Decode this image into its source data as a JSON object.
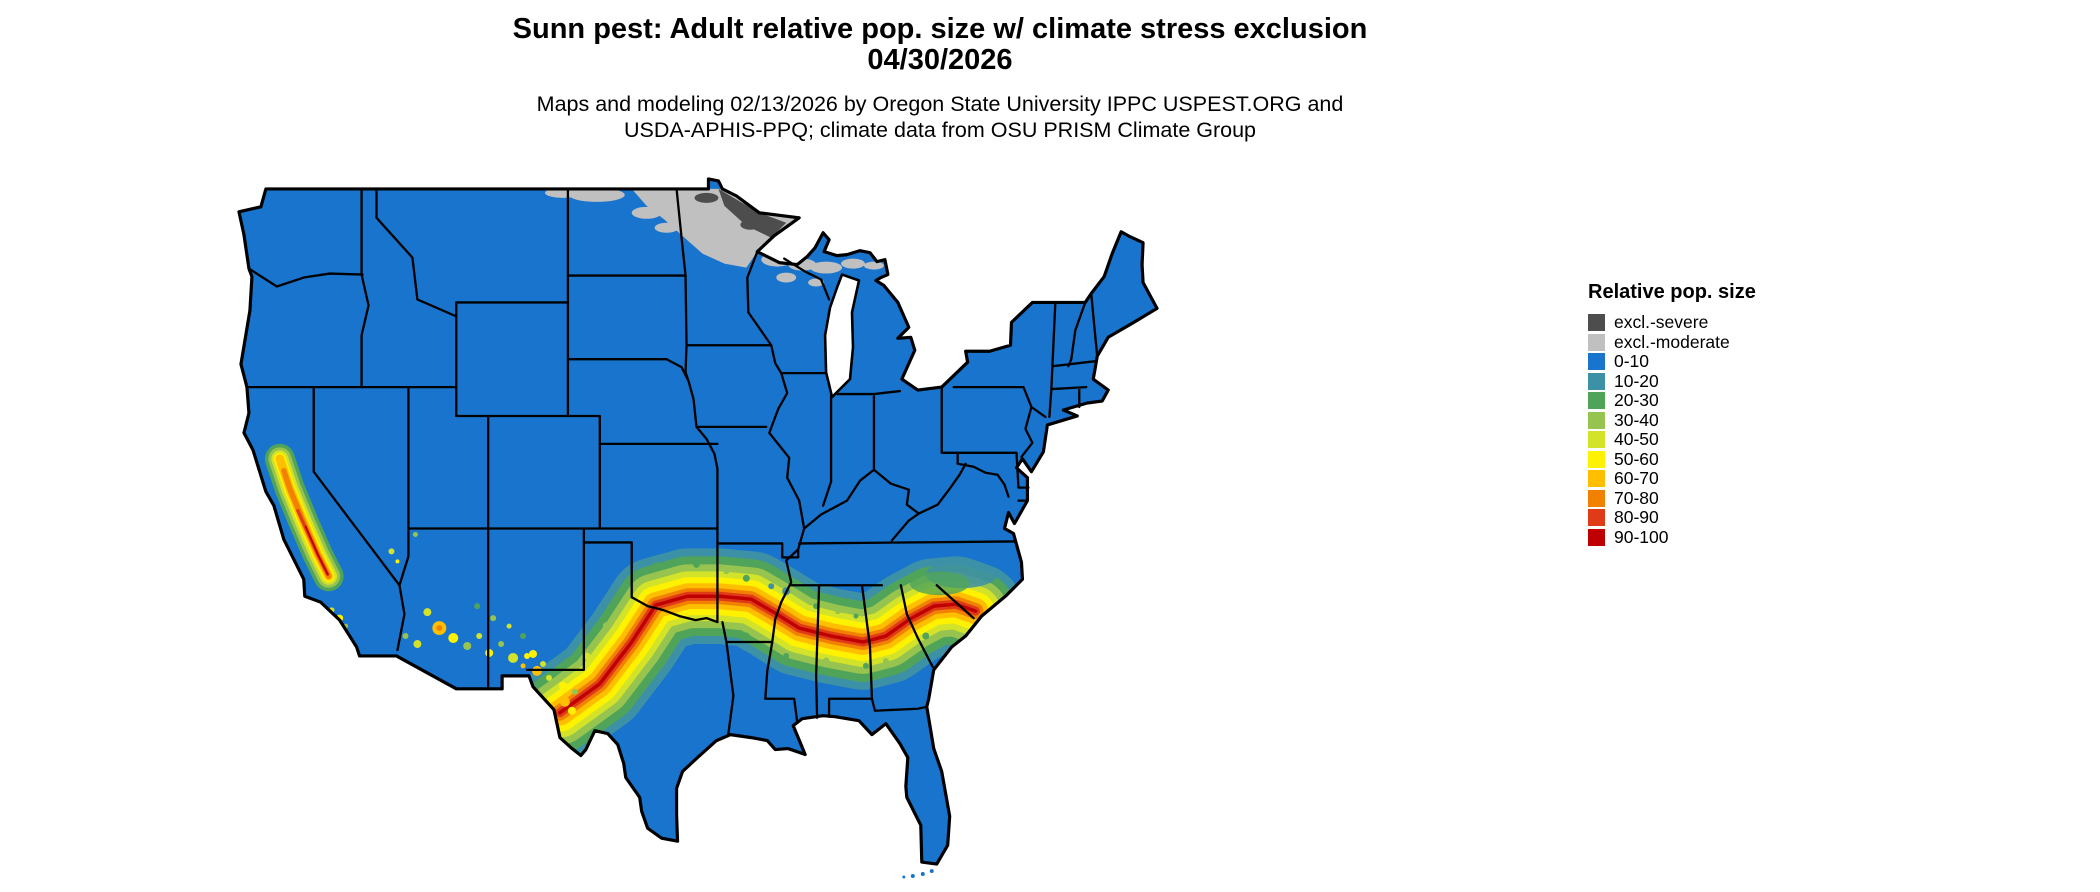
{
  "title": {
    "line1": "Sunn pest: Adult relative pop. size w/ climate stress exclusion",
    "line2": "04/30/2026"
  },
  "subtitle": {
    "line1": "Maps and modeling 02/13/2026 by Oregon State University IPPC USPEST.ORG and",
    "line2": "USDA-APHIS-PPQ; climate data from OSU PRISM Climate Group"
  },
  "legend": {
    "title": "Relative pop. size",
    "items": [
      {
        "label": "excl.-severe",
        "color": "#4D4D4D"
      },
      {
        "label": "excl.-moderate",
        "color": "#C0C0C0"
      },
      {
        "label": "0-10",
        "color": "#1874CD"
      },
      {
        "label": "10-20",
        "color": "#3D91A6"
      },
      {
        "label": "20-30",
        "color": "#4FA45A"
      },
      {
        "label": "30-40",
        "color": "#97C34F"
      },
      {
        "label": "40-50",
        "color": "#D3E32A"
      },
      {
        "label": "50-60",
        "color": "#FFF200"
      },
      {
        "label": "60-70",
        "color": "#FFBF00"
      },
      {
        "label": "70-80",
        "color": "#F28100"
      },
      {
        "label": "80-90",
        "color": "#DF3B19"
      },
      {
        "label": "90-100",
        "color": "#C00000"
      }
    ]
  },
  "map": {
    "region": "contiguous United States",
    "base_color": "#1874CD",
    "background": "#FFFFFF"
  }
}
